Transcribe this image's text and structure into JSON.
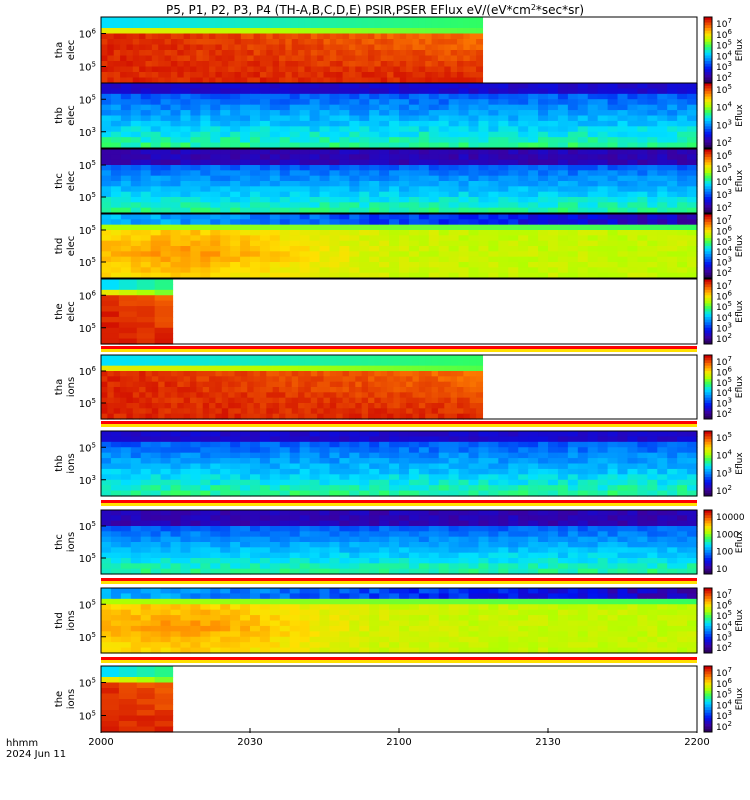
{
  "chart_data": {
    "type": "heatmap",
    "title": "P5, P1, P2, P3, P4 (TH-A,B,C,D,E) PSIR,PSER EFlux eV/(eV*cm^2*sec*sr)",
    "title_parts": {
      "main": "P5, P1, P2, P3, P4 (TH-A,B,C,D,E) PSIR,PSER EFlux eV/(eV*cm",
      "sup": "2",
      "tail": "*sec*sr)"
    },
    "x_axis": {
      "range": [
        "2000",
        "2200"
      ],
      "ticks": [
        "2000",
        "2030",
        "2100",
        "2130",
        "2200"
      ],
      "label_line1": "hhmm",
      "label_line2": "2024 Jun 11"
    },
    "panels": [
      {
        "probe": "tha",
        "species": "elec",
        "yticks": [
          "10^6",
          "10^5"
        ],
        "cbar_label": "Eflux",
        "cbar_ticks": [
          "10^7",
          "10^6",
          "10^5",
          "10^4",
          "10^3",
          "10^2"
        ],
        "data_end_frac": 0.64,
        "pattern": "hot"
      },
      {
        "probe": "thb",
        "species": "elec",
        "yticks": [
          "10^5",
          "10^3"
        ],
        "cbar_label": "Eflux",
        "cbar_ticks": [
          "10^5",
          "10^4",
          "10^3",
          "10^2"
        ],
        "data_end_frac": 1.0,
        "pattern": "cold"
      },
      {
        "probe": "thc",
        "species": "elec",
        "yticks": [
          "10^5",
          "10^5"
        ],
        "cbar_label": "Eflux",
        "cbar_ticks": [
          "10^6",
          "10^5",
          "10^4",
          "10^3",
          "10^2"
        ],
        "data_end_frac": 1.0,
        "pattern": "cold2"
      },
      {
        "probe": "thd",
        "species": "elec",
        "yticks": [
          "10^5",
          "10^5"
        ],
        "cbar_label": "Eflux",
        "cbar_ticks": [
          "10^7",
          "10^6",
          "10^5",
          "10^4",
          "10^3",
          "10^2"
        ],
        "data_end_frac": 1.0,
        "pattern": "warm"
      },
      {
        "probe": "the",
        "species": "elec",
        "yticks": [
          "10^6",
          "10^5"
        ],
        "cbar_label": "Eflux",
        "cbar_ticks": [
          "10^7",
          "10^6",
          "10^5",
          "10^4",
          "10^3",
          "10^2"
        ],
        "data_end_frac": 0.12,
        "pattern": "hot"
      },
      {
        "probe": "tha",
        "species": "ions",
        "yticks": [
          "10^6",
          "10^5"
        ],
        "cbar_label": "Eflux",
        "cbar_ticks": [
          "10^7",
          "10^6",
          "10^5",
          "10^4",
          "10^3",
          "10^2"
        ],
        "data_end_frac": 0.64,
        "pattern": "hot"
      },
      {
        "probe": "thb",
        "species": "ions",
        "yticks": [
          "10^5",
          "10^3"
        ],
        "cbar_label": "Eflux",
        "cbar_ticks": [
          "10^5",
          "10^4",
          "10^3",
          "10^2"
        ],
        "data_end_frac": 1.0,
        "pattern": "cold"
      },
      {
        "probe": "thc",
        "species": "ions",
        "yticks": [
          "10^5",
          "10^5"
        ],
        "cbar_label": "Eflux",
        "cbar_ticks": [
          "10000",
          "1000",
          "100",
          "10"
        ],
        "data_end_frac": 1.0,
        "pattern": "cold2"
      },
      {
        "probe": "thd",
        "species": "ions",
        "yticks": [
          "10^5",
          "10^5"
        ],
        "cbar_label": "Eflux",
        "cbar_ticks": [
          "10^7",
          "10^6",
          "10^5",
          "10^4",
          "10^3",
          "10^2"
        ],
        "data_end_frac": 1.0,
        "pattern": "warm"
      },
      {
        "probe": "the",
        "species": "ions",
        "yticks": [
          "10^5",
          "10^5"
        ],
        "cbar_label": "Eflux",
        "cbar_ticks": [
          "10^7",
          "10^6",
          "10^5",
          "10^4",
          "10^3",
          "10^2"
        ],
        "data_end_frac": 0.12,
        "pattern": "hot"
      }
    ]
  }
}
